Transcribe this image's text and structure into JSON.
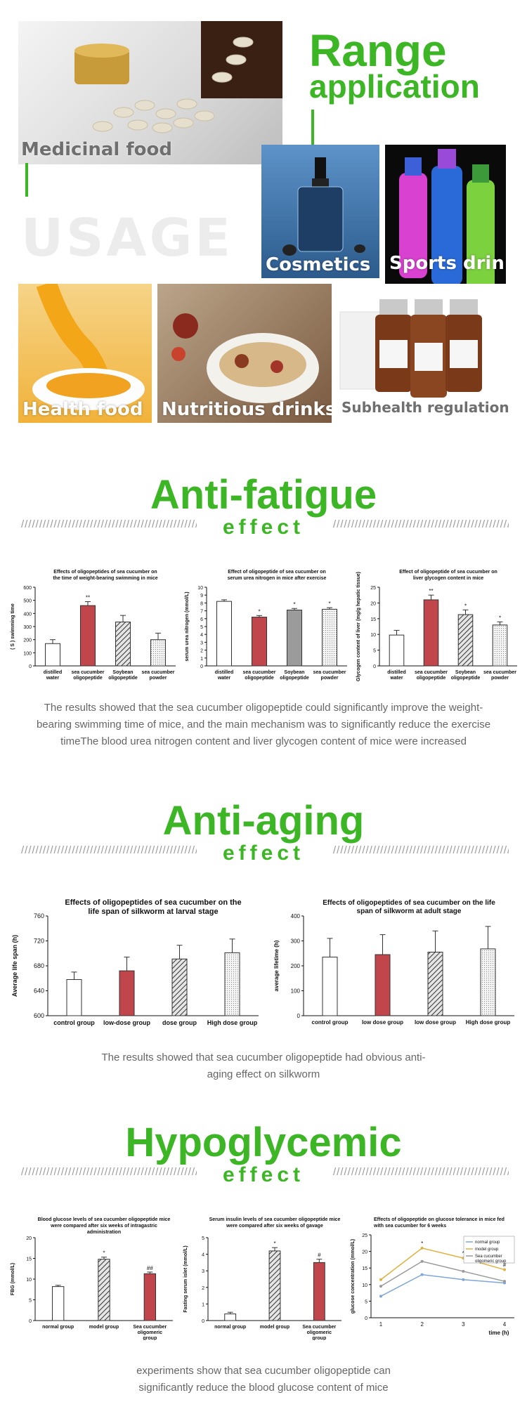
{
  "range": {
    "title_line1": "Range",
    "title_line2": "application",
    "watermark": "USAGE",
    "tiles": [
      {
        "label": "Medicinal food"
      },
      {
        "label": "Cosmetics"
      },
      {
        "label": "Sports drink"
      },
      {
        "label": "Health food"
      },
      {
        "label": "Nutritious drinks"
      },
      {
        "label": "Subhealth regulation"
      }
    ]
  },
  "sections": {
    "fatigue": {
      "title": "Anti-fatigue",
      "subtitle": "effect",
      "slashes": "////////////////////////////////////////////////////",
      "para": "The results showed that the sea cucumber oligopeptide could significantly improve the weight-bearing swimming time of mice, and the main mechanism was to significantly reduce the exercise timeThe blood urea nitrogen content and liver glycogen content of mice were increased"
    },
    "aging": {
      "title": "Anti-aging",
      "subtitle": "effect",
      "slashes": "////////////////////////////////////////////////////",
      "para": "The results showed that sea cucumber oligopeptide had obvious anti-aging effect on silkworm"
    },
    "hypo": {
      "title": "Hypoglycemic",
      "subtitle": "effect",
      "slashes": "////////////////////////////////////////////////////",
      "para": "experiments show that sea cucumber oligopeptide can significantly reduce the blood glucose content of mice"
    }
  },
  "colors": {
    "accent": "#3db626",
    "bar_red": "#c0464b",
    "bar_grey": "#9b9b9b",
    "bar_light": "#dcdcdc"
  },
  "chart_data": [
    {
      "type": "bar",
      "title": "Effects of oligopeptides of sea cucumber on the time of weight-bearing swimming in mice",
      "ylabel": "( S ) swimming time",
      "categories": [
        "distilled water",
        "sea cucumber oligopeptide",
        "Soybean oligopeptide",
        "sea cucumber powder"
      ],
      "values": [
        170,
        460,
        335,
        200
      ],
      "errors": [
        30,
        30,
        50,
        50
      ],
      "marks": [
        "",
        "**",
        "",
        ""
      ],
      "ylim": [
        0,
        600
      ],
      "yticks": [
        "0",
        "100",
        "200",
        "300",
        "400",
        "500",
        "600"
      ]
    },
    {
      "type": "bar",
      "title": "Effect of oligopeptide of sea cucumber on serum urea nitrogen in mice after exercise",
      "ylabel": "serum urea nitrogen (mmol/L)",
      "categories": [
        "distilled water",
        "sea cucumber oligopeptide",
        "Soybean oligopeptide",
        "sea cucumber powder"
      ],
      "values": [
        8.2,
        6.2,
        7.1,
        7.2
      ],
      "errors": [
        0.2,
        0.2,
        0.2,
        0.2
      ],
      "marks": [
        "",
        "*",
        "*",
        "*"
      ],
      "ylim": [
        0,
        10
      ],
      "yticks": [
        "0",
        "1",
        "2",
        "3",
        "4",
        "5",
        "6",
        "7",
        "8",
        "9",
        "10"
      ]
    },
    {
      "type": "bar",
      "title": "Effect of oligopeptide of sea cucumber on liver glycogen content in mice",
      "ylabel": "Glycogen content of liver (mg/g hepatic tissue)",
      "categories": [
        "distilled water",
        "sea cucumber oligopeptide",
        "Soybean oligopeptide",
        "sea cucumber powder"
      ],
      "values": [
        9.8,
        21,
        16.3,
        13
      ],
      "errors": [
        1.5,
        1.5,
        1.5,
        1
      ],
      "marks": [
        "",
        "**",
        "*",
        "*"
      ],
      "ylim": [
        0,
        25
      ],
      "yticks": [
        "0",
        "5",
        "10",
        "15",
        "20",
        "25"
      ]
    },
    {
      "type": "bar",
      "title": "Effects of oligopeptides of sea cucumber on the life span of silkworm at larval stage",
      "ylabel": "Average life span (h)",
      "categories": [
        "control group",
        "low-dose group",
        "dose group",
        "High dose group"
      ],
      "values": [
        658,
        672,
        691,
        701
      ],
      "errors": [
        12,
        22,
        22,
        22
      ],
      "marks": [
        "",
        "",
        "",
        ""
      ],
      "ylim": [
        600,
        760
      ],
      "yticks": [
        "600",
        "640",
        "680",
        "720",
        "760"
      ]
    },
    {
      "type": "bar",
      "title": "Effects of oligopeptides of sea cucumber on the life span of silkworm at adult stage",
      "ylabel": "average lifetime (h)",
      "categories": [
        "control group",
        "low dose group",
        "low dose group",
        "High dose group"
      ],
      "values": [
        235,
        245,
        255,
        268
      ],
      "errors": [
        75,
        80,
        85,
        90
      ],
      "marks": [
        "",
        "",
        "",
        ""
      ],
      "ylim": [
        0,
        400
      ],
      "yticks": [
        "0",
        "100",
        "200",
        "300",
        "400"
      ]
    },
    {
      "type": "bar",
      "title": "Blood glucose levels of sea cucumber oligopeptide mice were compared after six weeks of intragastric administration",
      "ylabel": "FBG (mmol/L)",
      "categories": [
        "normal group",
        "model group",
        "Sea cucumber oligomeric group"
      ],
      "values": [
        8.2,
        14.8,
        11.3
      ],
      "errors": [
        0.3,
        0.5,
        0.4
      ],
      "marks": [
        "",
        "*",
        "##"
      ],
      "ylim": [
        0,
        20
      ],
      "yticks": [
        "0",
        "5",
        "10",
        "15",
        "20"
      ]
    },
    {
      "type": "bar",
      "title": "Serum insulin levels of sea cucumber oligopeptide mice were compared after six weeks of gavage",
      "ylabel": "Fasting serum islet (mmol/L)",
      "categories": [
        "normal group",
        "model group",
        "Sea cucumber oligomeric group"
      ],
      "values": [
        0.4,
        4.2,
        3.5
      ],
      "errors": [
        0.1,
        0.2,
        0.2
      ],
      "marks": [
        "",
        "*",
        "#"
      ],
      "ylim": [
        0,
        5
      ],
      "yticks": [
        "0",
        "1",
        "2",
        "3",
        "4",
        "5"
      ]
    },
    {
      "type": "line",
      "title": "Effects of oligopeptide on glucose tolerance in mice fed with sea cucumber for 6 weeks",
      "ylabel": "glucose concentration (mmol/L)",
      "xlabel": "time (h)",
      "x": [
        1,
        2,
        3,
        4
      ],
      "ylim": [
        0,
        25
      ],
      "yticks": [
        "0",
        "5",
        "10",
        "15",
        "20",
        "25"
      ],
      "series": [
        {
          "name": "normal group",
          "values": [
            6.5,
            13,
            11.5,
            10.5
          ],
          "color": "#7fa6d8"
        },
        {
          "name": "model group",
          "values": [
            11.5,
            21,
            18,
            14.5
          ],
          "color": "#e0b040"
        },
        {
          "name": "Sea cucumber oligomeric group",
          "values": [
            9.5,
            17,
            14,
            11
          ],
          "color": "#999999"
        }
      ],
      "marks": [
        "",
        "*",
        "*",
        "#"
      ]
    }
  ]
}
